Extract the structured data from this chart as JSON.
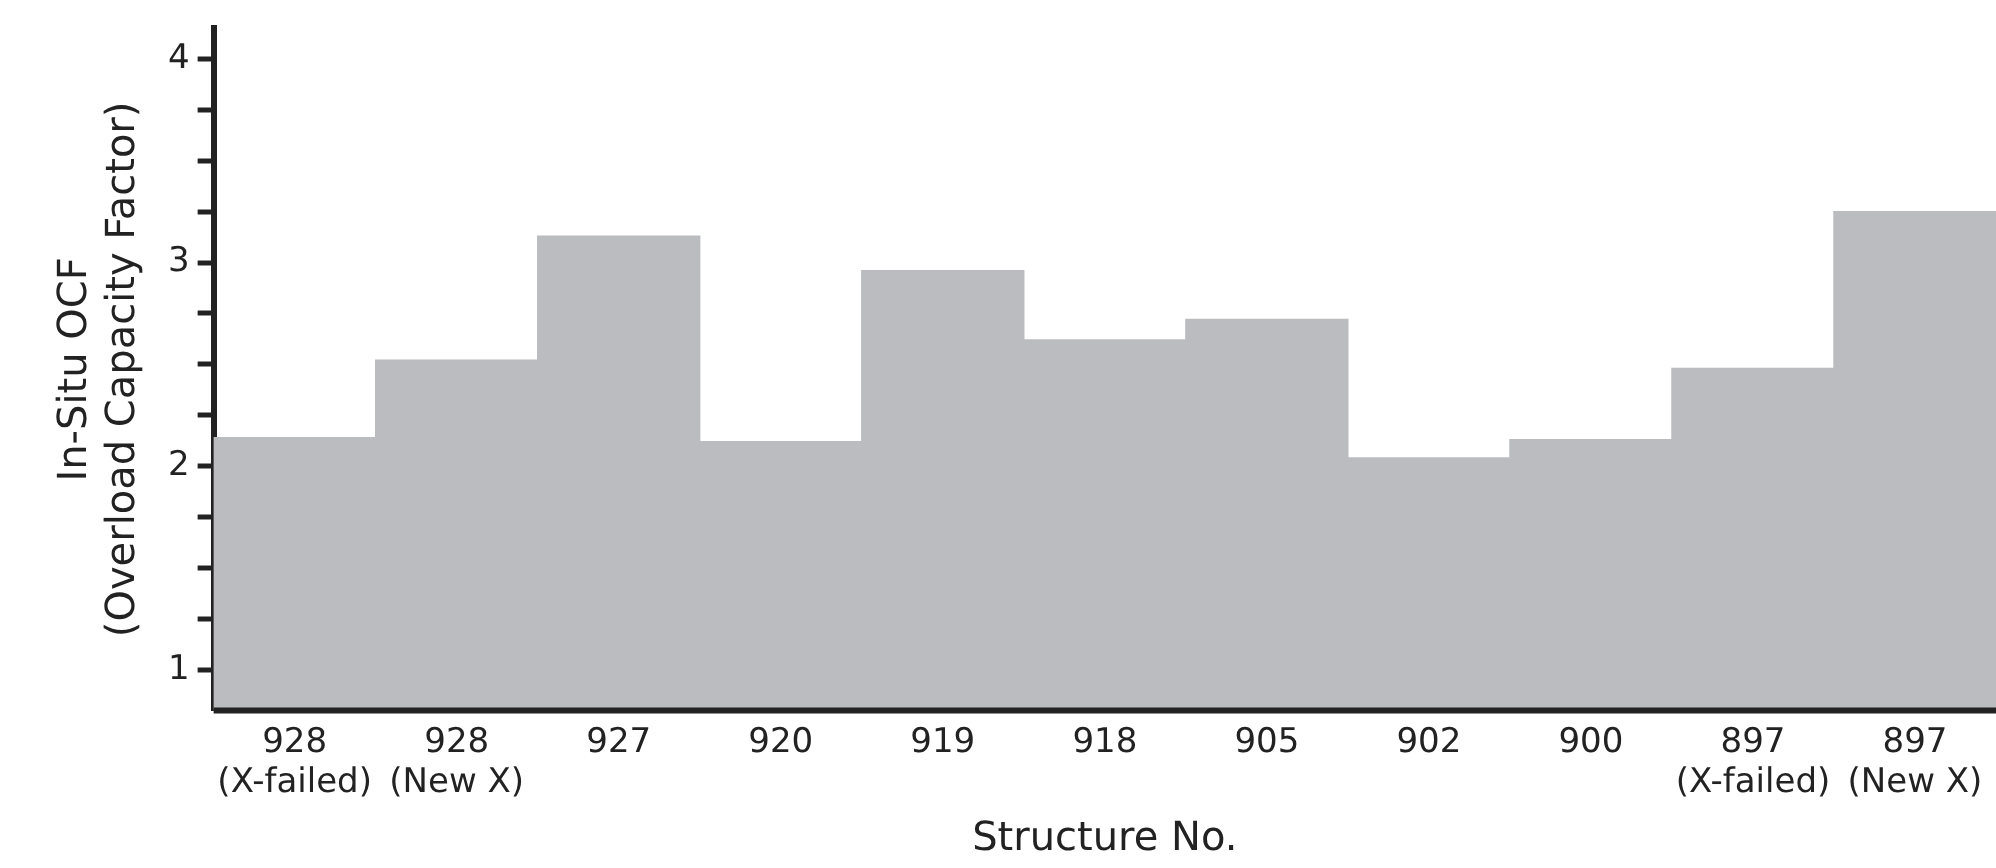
{
  "chart_data": {
    "type": "bar",
    "xlabel": "Structure No.",
    "ylabel": "In-Situ OCF\n(Overload Capacity Factor)",
    "categories": [
      "928\n(X-failed)",
      "928\n(New X)",
      "927",
      "920",
      "919",
      "918",
      "905",
      "902",
      "900",
      "897\n(X-failed)",
      "897\n(New X)"
    ],
    "values": [
      2.14,
      2.52,
      3.13,
      2.12,
      2.96,
      2.62,
      2.72,
      2.04,
      2.13,
      2.48,
      3.25
    ],
    "color": "#bbbcc0",
    "ylim": [
      0.8,
      4.15
    ],
    "yticks": [
      1,
      {
        "value": 1.25,
        "label": null
      },
      {
        "value": 1.5,
        "label": null
      },
      {
        "value": 1.75,
        "label": null
      },
      2,
      {
        "value": 2.25,
        "label": null
      },
      {
        "value": 2.5,
        "label": null
      },
      {
        "value": 2.75,
        "label": null
      },
      3,
      {
        "value": 3.25,
        "label": null
      },
      {
        "value": 3.5,
        "label": null
      },
      {
        "value": 3.75,
        "label": null
      },
      4
    ],
    "grid": false
  }
}
